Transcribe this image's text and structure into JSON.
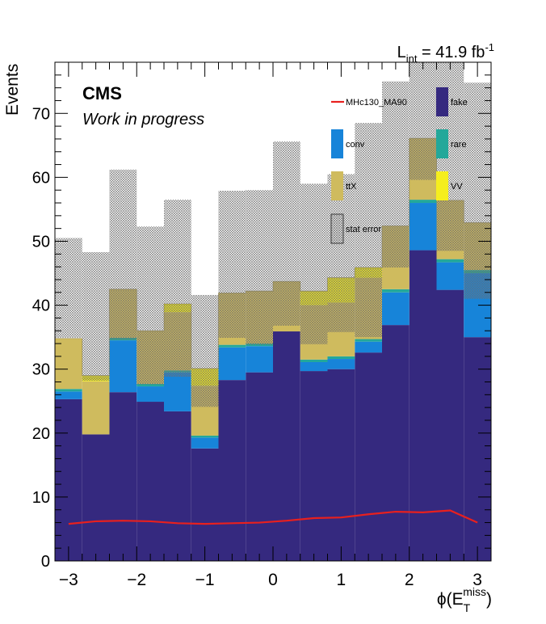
{
  "chart_data": {
    "type": "bar",
    "stacked": true,
    "title": "",
    "lumi": {
      "main": "L",
      "sub": "int",
      "value": " = 41.9 fb",
      "sup": "-1"
    },
    "cms_label": "CMS",
    "cms_sublabel": "Work in progress",
    "ylabel": "Events",
    "xlabel": {
      "base": "ϕ(E",
      "sub": "T",
      "sup": "miss",
      "close": ")"
    },
    "xlim": [
      -3.2,
      3.2
    ],
    "ylim": [
      0,
      78
    ],
    "xticks": [
      -3,
      -2,
      -1,
      0,
      1,
      2,
      3
    ],
    "xtick_labels": [
      "−3",
      "−2",
      "−1",
      "0",
      "1",
      "2",
      "3"
    ],
    "yticks": [
      0,
      10,
      20,
      30,
      40,
      50,
      60,
      70
    ],
    "ytick_labels": [
      "0",
      "10",
      "20",
      "30",
      "40",
      "50",
      "60",
      "70"
    ],
    "bin_edges": [
      -3.2,
      -2.8,
      -2.4,
      -2.0,
      -1.6,
      -1.2,
      -0.8,
      -0.4,
      0.0,
      0.4,
      0.8,
      1.2,
      1.6,
      2.0,
      2.4,
      2.8,
      3.2
    ],
    "series": [
      {
        "name": "fake",
        "color": "#35297f",
        "values": [
          25.3,
          19.8,
          26.4,
          24.9,
          23.4,
          17.6,
          28.3,
          29.5,
          35.9,
          29.7,
          30.0,
          32.6,
          36.9,
          48.6,
          42.4,
          35.0
        ]
      },
      {
        "name": "conv",
        "color": "#1784d9",
        "values": [
          1.2,
          0.0,
          8.1,
          2.4,
          6.1,
          1.7,
          5.1,
          4.1,
          0.0,
          1.4,
          1.6,
          1.7,
          5.1,
          7.4,
          4.3,
          10.0
        ]
      },
      {
        "name": "rare",
        "color": "#23a89a",
        "values": [
          0.4,
          0.0,
          0.4,
          0.4,
          0.3,
          0.3,
          0.4,
          0.4,
          0.0,
          0.4,
          0.4,
          0.4,
          0.5,
          0.5,
          0.5,
          0.5
        ]
      },
      {
        "name": "ttX",
        "color": "#cfbb5e",
        "values": [
          7.9,
          8.3,
          7.6,
          8.3,
          9.1,
          7.8,
          8.1,
          8.2,
          7.8,
          8.5,
          8.4,
          9.6,
          9.9,
          9.6,
          9.2,
          7.4
        ]
      },
      {
        "name": "VV",
        "color": "#f5ee1e",
        "values": [
          0.0,
          0.9,
          0.0,
          0.0,
          1.3,
          2.7,
          0.0,
          0.0,
          0.0,
          2.2,
          3.9,
          1.6,
          0.0,
          0.0,
          0.0,
          0.0
        ]
      }
    ],
    "stat_error": {
      "name": "stat error",
      "band": [
        [
          34.9,
          50.5
        ],
        [
          28.2,
          48.3
        ],
        [
          34.6,
          61.2
        ],
        [
          27.6,
          52.3
        ],
        [
          28.8,
          56.5
        ],
        [
          24.1,
          41.6
        ],
        [
          34.9,
          57.9
        ],
        [
          33.8,
          58.0
        ],
        [
          36.8,
          65.6
        ],
        [
          33.9,
          59.0
        ],
        [
          35.8,
          60.5
        ],
        [
          35.0,
          68.5
        ],
        [
          45.9,
          75.0
        ],
        [
          59.6,
          78.0
        ],
        [
          48.5,
          78.0
        ],
        [
          41.0,
          74.8
        ]
      ]
    },
    "signal": {
      "name": "MHc130_MA90",
      "color": "#e8201e",
      "x": [
        -3.0,
        -2.6,
        -2.2,
        -1.8,
        -1.4,
        -1.0,
        -0.6,
        -0.2,
        0.2,
        0.6,
        1.0,
        1.4,
        1.8,
        2.2,
        2.6,
        3.0
      ],
      "values": [
        5.8,
        6.2,
        6.3,
        6.2,
        5.9,
        5.8,
        5.9,
        6.0,
        6.3,
        6.7,
        6.8,
        7.3,
        7.7,
        7.6,
        7.9,
        6.0
      ]
    },
    "legend": {
      "placement": "top-right",
      "entries": [
        "MHc130_MA90",
        "fake",
        "conv",
        "rare",
        "ttX",
        "VV",
        "stat error"
      ]
    }
  }
}
